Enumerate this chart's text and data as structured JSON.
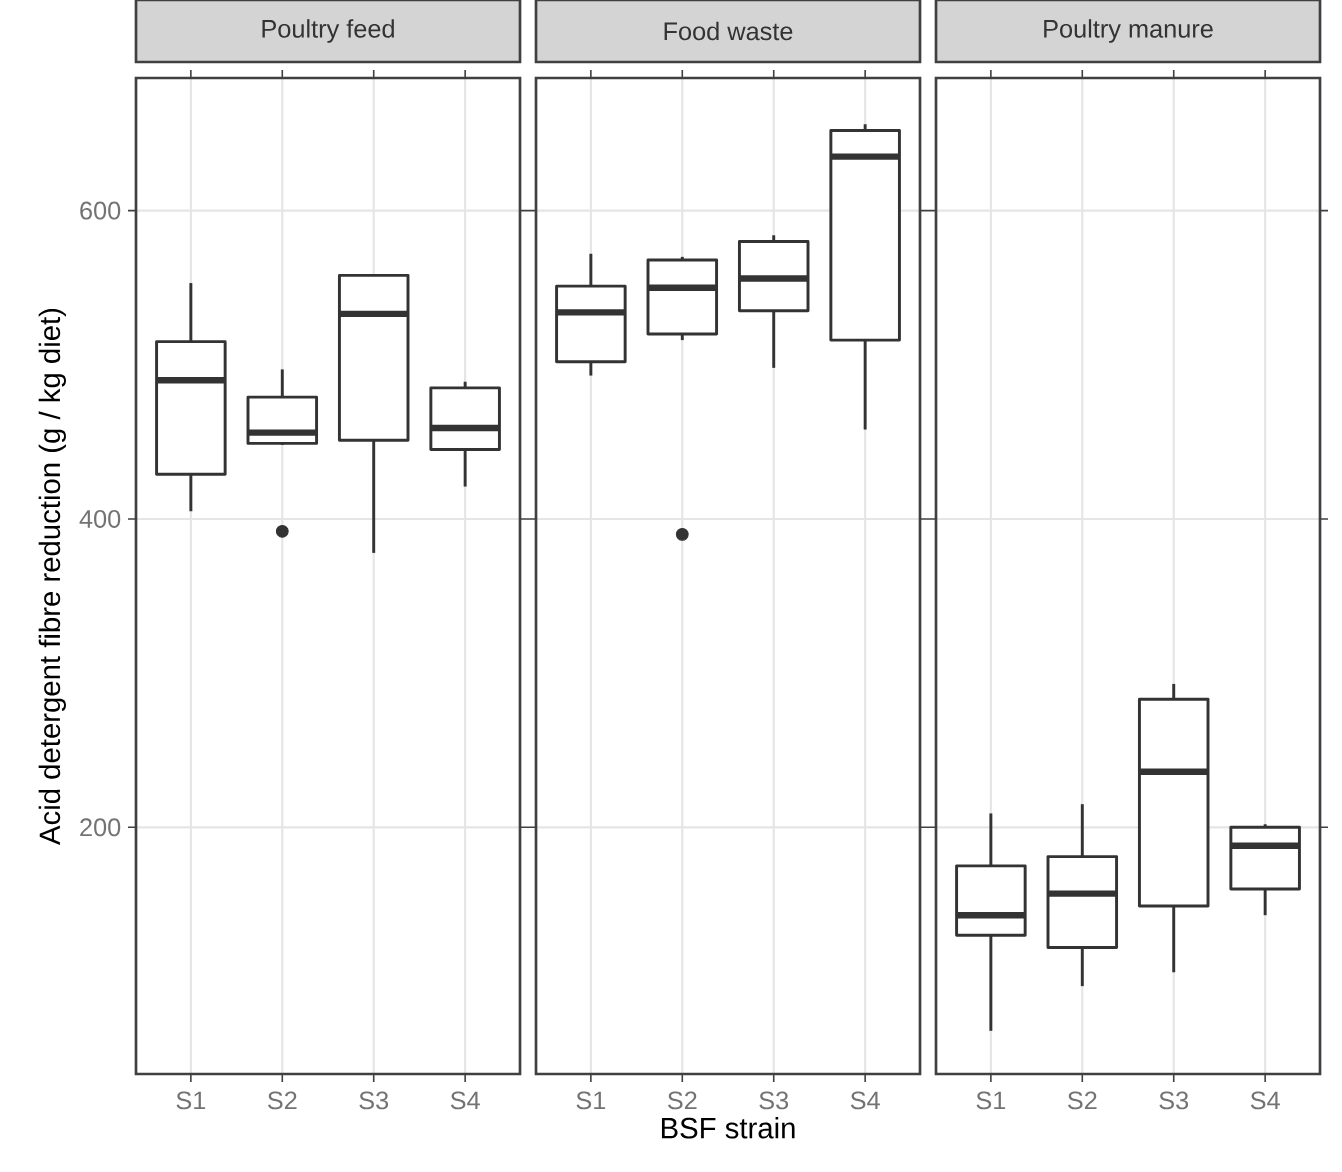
{
  "chart_data": [
    {
      "type": "box",
      "title": "Poultry feed",
      "ylabel": "Acid detergent fibre reduction (g / kg diet)",
      "categories": [
        "S1",
        "S2",
        "S3",
        "S4"
      ],
      "color": "#333333",
      "ylim": [
        40,
        686
      ],
      "yticks": [
        200,
        400,
        600
      ],
      "grid": true,
      "boxes": [
        {
          "low": 405,
          "q1": 429,
          "median": 490,
          "q3": 515,
          "high": 553
        },
        {
          "low": 448,
          "q1": 449,
          "median": 456,
          "q3": 479,
          "high": 497,
          "outliers": [
            392
          ]
        },
        {
          "low": 378,
          "q1": 451,
          "median": 533,
          "q3": 558,
          "high": 558
        },
        {
          "low": 421,
          "q1": 445,
          "median": 459,
          "q3": 485,
          "high": 489
        }
      ]
    },
    {
      "type": "box",
      "title": "Food waste",
      "xlabel": "BSF strain",
      "categories": [
        "S1",
        "S2",
        "S3",
        "S4"
      ],
      "color": "#333333",
      "ylim": [
        40,
        686
      ],
      "yticks": [
        200,
        400,
        600
      ],
      "grid": true,
      "tick_labels": "x",
      "boxes": [
        {
          "low": 493,
          "q1": 502,
          "median": 534,
          "q3": 551,
          "high": 572
        },
        {
          "low": 516,
          "q1": 520,
          "median": 550,
          "q3": 568,
          "high": 570,
          "outliers": [
            390
          ]
        },
        {
          "low": 498,
          "q1": 535,
          "median": 556,
          "q3": 580,
          "high": 584
        },
        {
          "low": 458,
          "q1": 516,
          "median": 635,
          "q3": 652,
          "high": 656
        }
      ]
    },
    {
      "type": "box",
      "title": "Poultry manure",
      "categories": [
        "S1",
        "S2",
        "S3",
        "S4"
      ],
      "color": "#333333",
      "ylim": [
        40,
        686
      ],
      "yticks": [
        200,
        400,
        600
      ],
      "grid": true,
      "tick_labels": "x",
      "boxes": [
        {
          "low": 68,
          "q1": 130,
          "median": 143,
          "q3": 175,
          "high": 209
        },
        {
          "low": 97,
          "q1": 122,
          "median": 157,
          "q3": 181,
          "high": 215
        },
        {
          "low": 106,
          "q1": 149,
          "median": 236,
          "q3": 283,
          "high": 293
        },
        {
          "low": 143,
          "q1": 160,
          "median": 188,
          "q3": 200,
          "high": 202
        }
      ]
    }
  ]
}
